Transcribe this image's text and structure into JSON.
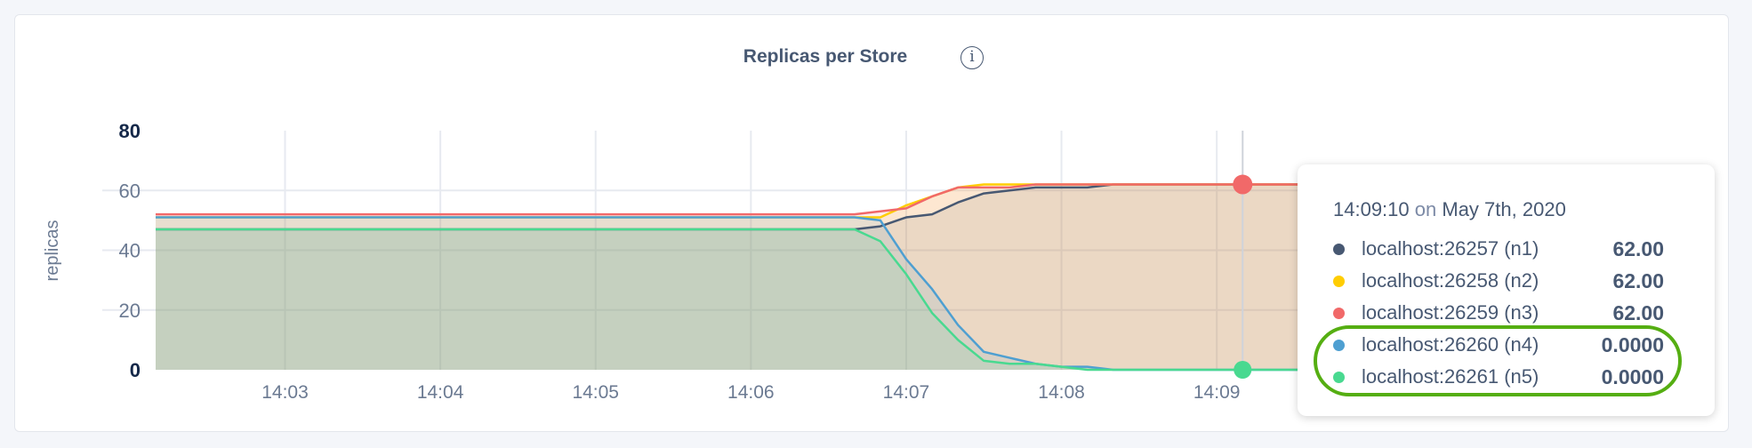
{
  "chart_data": {
    "type": "area",
    "title": "Replicas per Store",
    "info_icon": "info-icon",
    "ylabel": "replicas",
    "xlabel": "",
    "ylim": [
      0,
      80
    ],
    "xlim": [
      "14:02:10",
      "14:12:00"
    ],
    "yticks": [
      "0",
      "20",
      "40",
      "60",
      "80"
    ],
    "xticks": [
      "14:03",
      "14:04",
      "14:05",
      "14:06",
      "14:07",
      "14:08",
      "14:09"
    ],
    "grid": true,
    "x": [
      "14:02:10",
      "14:06:40",
      "14:06:50",
      "14:07:00",
      "14:07:10",
      "14:07:20",
      "14:07:30",
      "14:07:40",
      "14:07:50",
      "14:08:00",
      "14:08:10",
      "14:08:20",
      "14:12:00"
    ],
    "series": [
      {
        "name": "localhost:26257 (n1)",
        "color": "#475872",
        "values": [
          47,
          47,
          48,
          51,
          52,
          56,
          59,
          60,
          61,
          61,
          61,
          62,
          62
        ]
      },
      {
        "name": "localhost:26258 (n2)",
        "color": "#ffcd02",
        "values": [
          51,
          51,
          51,
          55,
          58,
          61,
          62,
          62,
          62,
          62,
          62,
          62,
          62
        ]
      },
      {
        "name": "localhost:26259 (n3)",
        "color": "#f16969",
        "values": [
          52,
          52,
          53,
          54,
          58,
          61,
          61,
          61,
          62,
          62,
          62,
          62,
          62
        ]
      },
      {
        "name": "localhost:26260 (n4)",
        "color": "#4e9fd1",
        "values": [
          51,
          51,
          50,
          37,
          27,
          15,
          6,
          4,
          2,
          1,
          1,
          0,
          0
        ]
      },
      {
        "name": "localhost:26261 (n5)",
        "color": "#49d990",
        "values": [
          47,
          47,
          43,
          32,
          19,
          10,
          3,
          2,
          2,
          1,
          0,
          0,
          0
        ]
      }
    ],
    "hover": {
      "time": "14:09:10"
    }
  },
  "tooltip": {
    "time": "14:09:10",
    "on": "on",
    "date": "May 7th, 2020",
    "rows": [
      {
        "label": "localhost:26257 (n1)",
        "value": "62.00",
        "color": "#475872"
      },
      {
        "label": "localhost:26258 (n2)",
        "value": "62.00",
        "color": "#ffcd02"
      },
      {
        "label": "localhost:26259 (n3)",
        "value": "62.00",
        "color": "#f16969"
      },
      {
        "label": "localhost:26260 (n4)",
        "value": "0.0000",
        "color": "#4e9fd1"
      },
      {
        "label": "localhost:26261 (n5)",
        "value": "0.0000",
        "color": "#49d990"
      }
    ],
    "highlight_color": "#55ae12"
  }
}
